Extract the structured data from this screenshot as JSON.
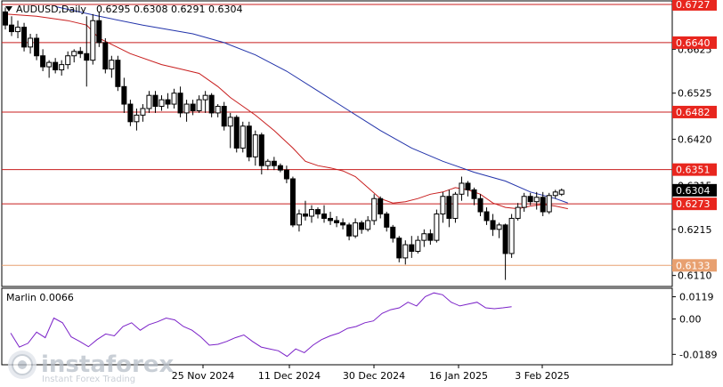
{
  "header": {
    "symbol_label": "AUDUSD,Daily",
    "ohlc_label": "0.6295 0.6308 0.6291 0.6304"
  },
  "indicator": {
    "label": "Marlin 0.0066",
    "ticks": [
      0.0119,
      0.0,
      -0.0189
    ]
  },
  "logo": {
    "brand": "instaforex",
    "tagline": "Instant Forex Trading"
  },
  "colors": {
    "bull": "#ffffff",
    "bear": "#000000",
    "ma_fast": "#c81e1e",
    "ma_slow": "#2233aa",
    "level_line": "#c81e1e",
    "level_label_bg": "#e8261e",
    "last_price_bg": "#000000",
    "support_line": "#e8a070",
    "support_label_bg": "#e8a070",
    "oscillator": "#7b22c8"
  },
  "chart_data": [
    {
      "type": "candlestick",
      "title": "AUDUSD,Daily",
      "x_tick_labels": [
        "25 Nov 2024",
        "11 Dec 2024",
        "30 Dec 2024",
        "16 Jan 2025",
        "3 Feb 2025"
      ],
      "y_tick_labels": [
        0.6625,
        0.6525,
        0.642,
        0.6315,
        0.6215,
        0.611
      ],
      "ylim": [
        0.6085,
        0.6735
      ],
      "levels": [
        {
          "value": 0.6727,
          "label": "0.6727"
        },
        {
          "value": 0.664,
          "label": "0.6640"
        },
        {
          "value": 0.6482,
          "label": "0.6482"
        },
        {
          "value": 0.6351,
          "label": "0.6351"
        },
        {
          "value": 0.6273,
          "label": "0.6273"
        }
      ],
      "support": {
        "value": 0.6133,
        "label": "0.6133"
      },
      "last_price": {
        "value": 0.6304,
        "label": "0.6304"
      },
      "candles": [
        [
          0.671,
          0.672,
          0.667,
          0.668
        ],
        [
          0.668,
          0.67,
          0.6655,
          0.6665
        ],
        [
          0.6665,
          0.669,
          0.665,
          0.6675
        ],
        [
          0.6675,
          0.6685,
          0.662,
          0.663
        ],
        [
          0.663,
          0.666,
          0.6615,
          0.665
        ],
        [
          0.665,
          0.666,
          0.66,
          0.661
        ],
        [
          0.661,
          0.6625,
          0.6575,
          0.6585
        ],
        [
          0.6585,
          0.66,
          0.656,
          0.6595
        ],
        [
          0.6595,
          0.6605,
          0.657,
          0.6578
        ],
        [
          0.6578,
          0.66,
          0.6565,
          0.659
        ],
        [
          0.659,
          0.662,
          0.658,
          0.661
        ],
        [
          0.661,
          0.6625,
          0.6595,
          0.662
        ],
        [
          0.662,
          0.663,
          0.6605,
          0.6615
        ],
        [
          0.6615,
          0.67,
          0.654,
          0.66
        ],
        [
          0.66,
          0.6705,
          0.659,
          0.669
        ],
        [
          0.669,
          0.671,
          0.663,
          0.664
        ],
        [
          0.664,
          0.665,
          0.657,
          0.658
        ],
        [
          0.658,
          0.661,
          0.656,
          0.66
        ],
        [
          0.66,
          0.661,
          0.653,
          0.654
        ],
        [
          0.654,
          0.656,
          0.648,
          0.65
        ],
        [
          0.65,
          0.651,
          0.645,
          0.646
        ],
        [
          0.646,
          0.649,
          0.644,
          0.6475
        ],
        [
          0.6475,
          0.65,
          0.646,
          0.649
        ],
        [
          0.649,
          0.653,
          0.648,
          0.652
        ],
        [
          0.652,
          0.653,
          0.648,
          0.6495
        ],
        [
          0.6495,
          0.652,
          0.6485,
          0.651
        ],
        [
          0.651,
          0.6525,
          0.649,
          0.65
        ],
        [
          0.65,
          0.6535,
          0.649,
          0.6525
        ],
        [
          0.6525,
          0.654,
          0.647,
          0.648
        ],
        [
          0.648,
          0.651,
          0.646,
          0.65
        ],
        [
          0.65,
          0.651,
          0.6475,
          0.6485
        ],
        [
          0.6485,
          0.652,
          0.648,
          0.651
        ],
        [
          0.651,
          0.653,
          0.648,
          0.652
        ],
        [
          0.652,
          0.6525,
          0.647,
          0.648
        ],
        [
          0.648,
          0.65,
          0.647,
          0.6495
        ],
        [
          0.6495,
          0.6505,
          0.644,
          0.645
        ],
        [
          0.645,
          0.648,
          0.64,
          0.647
        ],
        [
          0.647,
          0.6475,
          0.639,
          0.64
        ],
        [
          0.64,
          0.646,
          0.639,
          0.645
        ],
        [
          0.645,
          0.646,
          0.637,
          0.638
        ],
        [
          0.638,
          0.644,
          0.636,
          0.643
        ],
        [
          0.643,
          0.6435,
          0.634,
          0.636
        ],
        [
          0.636,
          0.6375,
          0.635,
          0.637
        ],
        [
          0.637,
          0.638,
          0.635,
          0.636
        ],
        [
          0.636,
          0.6365,
          0.6345,
          0.635
        ],
        [
          0.635,
          0.636,
          0.632,
          0.633
        ],
        [
          0.633,
          0.6335,
          0.622,
          0.6225
        ],
        [
          0.6225,
          0.626,
          0.621,
          0.625
        ],
        [
          0.625,
          0.628,
          0.6235,
          0.6245
        ],
        [
          0.6245,
          0.627,
          0.623,
          0.626
        ],
        [
          0.626,
          0.6265,
          0.624,
          0.625
        ],
        [
          0.625,
          0.627,
          0.623,
          0.624
        ],
        [
          0.624,
          0.6255,
          0.6225,
          0.6235
        ],
        [
          0.6235,
          0.6245,
          0.622,
          0.623
        ],
        [
          0.623,
          0.624,
          0.6215,
          0.6225
        ],
        [
          0.6225,
          0.623,
          0.619,
          0.62
        ],
        [
          0.62,
          0.624,
          0.6195,
          0.623
        ],
        [
          0.623,
          0.6235,
          0.6205,
          0.6215
        ],
        [
          0.6215,
          0.6245,
          0.621,
          0.6235
        ],
        [
          0.6235,
          0.6295,
          0.6225,
          0.6285
        ],
        [
          0.6285,
          0.629,
          0.624,
          0.625
        ],
        [
          0.625,
          0.6255,
          0.621,
          0.622
        ],
        [
          0.622,
          0.6225,
          0.6185,
          0.6195
        ],
        [
          0.6195,
          0.62,
          0.614,
          0.615
        ],
        [
          0.615,
          0.619,
          0.6135,
          0.618
        ],
        [
          0.618,
          0.62,
          0.615,
          0.6165
        ],
        [
          0.6165,
          0.62,
          0.616,
          0.619
        ],
        [
          0.619,
          0.6215,
          0.6175,
          0.6205
        ],
        [
          0.6205,
          0.6215,
          0.618,
          0.619
        ],
        [
          0.619,
          0.626,
          0.6185,
          0.625
        ],
        [
          0.625,
          0.63,
          0.623,
          0.629
        ],
        [
          0.629,
          0.6305,
          0.622,
          0.624
        ],
        [
          0.624,
          0.63,
          0.623,
          0.6295
        ],
        [
          0.6295,
          0.6335,
          0.628,
          0.632
        ],
        [
          0.632,
          0.6325,
          0.629,
          0.6305
        ],
        [
          0.6305,
          0.631,
          0.627,
          0.6285
        ],
        [
          0.6285,
          0.6295,
          0.6245,
          0.6255
        ],
        [
          0.6255,
          0.6265,
          0.6225,
          0.6235
        ],
        [
          0.6235,
          0.625,
          0.62,
          0.6215
        ],
        [
          0.6215,
          0.623,
          0.6195,
          0.6225
        ],
        [
          0.6225,
          0.6228,
          0.61,
          0.616
        ],
        [
          0.616,
          0.625,
          0.615,
          0.624
        ],
        [
          0.624,
          0.6275,
          0.6235,
          0.6265
        ],
        [
          0.6265,
          0.6298,
          0.6255,
          0.629
        ],
        [
          0.629,
          0.6298,
          0.627,
          0.6278
        ],
        [
          0.6278,
          0.63,
          0.626,
          0.6288
        ],
        [
          0.6288,
          0.63,
          0.6245,
          0.6255
        ],
        [
          0.6255,
          0.6298,
          0.625,
          0.6292
        ],
        [
          0.6292,
          0.6305,
          0.6285,
          0.63
        ],
        [
          0.6295,
          0.6308,
          0.6291,
          0.6304
        ]
      ],
      "ma_fast": [
        [
          0,
          0.6705
        ],
        [
          5,
          0.67
        ],
        [
          10,
          0.669
        ],
        [
          13,
          0.668
        ],
        [
          15,
          0.665
        ],
        [
          20,
          0.6615
        ],
        [
          25,
          0.659
        ],
        [
          28,
          0.658
        ],
        [
          31,
          0.657
        ],
        [
          34,
          0.654
        ],
        [
          36,
          0.6515
        ],
        [
          38,
          0.6495
        ],
        [
          40,
          0.6475
        ],
        [
          43,
          0.644
        ],
        [
          46,
          0.64
        ],
        [
          48,
          0.637
        ],
        [
          50,
          0.636
        ],
        [
          52,
          0.6355
        ],
        [
          54,
          0.6348
        ],
        [
          56,
          0.6335
        ],
        [
          58,
          0.631
        ],
        [
          60,
          0.6285
        ],
        [
          62,
          0.6275
        ],
        [
          64,
          0.6278
        ],
        [
          66,
          0.6285
        ],
        [
          68,
          0.6295
        ],
        [
          70,
          0.63
        ],
        [
          72,
          0.631
        ],
        [
          74,
          0.6305
        ],
        [
          76,
          0.6295
        ],
        [
          78,
          0.6275
        ],
        [
          80,
          0.6265
        ],
        [
          82,
          0.6262
        ],
        [
          84,
          0.6268
        ],
        [
          86,
          0.6272
        ],
        [
          88,
          0.6268
        ],
        [
          90,
          0.6262
        ]
      ],
      "ma_slow": [
        [
          8,
          0.6722
        ],
        [
          15,
          0.67
        ],
        [
          22,
          0.668
        ],
        [
          30,
          0.666
        ],
        [
          35,
          0.664
        ],
        [
          40,
          0.6612
        ],
        [
          45,
          0.6575
        ],
        [
          50,
          0.653
        ],
        [
          55,
          0.6485
        ],
        [
          60,
          0.644
        ],
        [
          65,
          0.64
        ],
        [
          70,
          0.637
        ],
        [
          75,
          0.6345
        ],
        [
          80,
          0.6325
        ],
        [
          84,
          0.63
        ],
        [
          88,
          0.6285
        ],
        [
          90,
          0.6275
        ]
      ]
    },
    {
      "type": "line",
      "title": "Marlin 0.0066",
      "ylim": [
        -0.0235,
        0.0155
      ],
      "y_tick_labels": [
        0.0119,
        0.0,
        -0.0189
      ],
      "points": [
        [
          14,
          -0.0075
        ],
        [
          16,
          -0.015
        ],
        [
          18,
          -0.013
        ],
        [
          20,
          -0.007
        ],
        [
          22,
          -0.01
        ],
        [
          24,
          0.0005
        ],
        [
          26,
          -0.002
        ],
        [
          28,
          -0.0095
        ],
        [
          30,
          -0.012
        ],
        [
          32,
          -0.0148
        ],
        [
          34,
          -0.011
        ],
        [
          36,
          -0.008
        ],
        [
          38,
          -0.009
        ],
        [
          40,
          -0.004
        ],
        [
          42,
          -0.002
        ],
        [
          44,
          -0.006
        ],
        [
          46,
          -0.003
        ],
        [
          48,
          -0.0015
        ],
        [
          50,
          0.0005
        ],
        [
          52,
          -0.0005
        ],
        [
          54,
          -0.004
        ],
        [
          56,
          -0.006
        ],
        [
          58,
          -0.0095
        ],
        [
          60,
          -0.014
        ],
        [
          62,
          -0.0135
        ],
        [
          64,
          -0.012
        ],
        [
          66,
          -0.01
        ],
        [
          68,
          -0.0085
        ],
        [
          70,
          -0.012
        ],
        [
          72,
          -0.015
        ],
        [
          74,
          -0.016
        ],
        [
          76,
          -0.017
        ],
        [
          78,
          -0.02
        ],
        [
          80,
          -0.016
        ],
        [
          82,
          -0.018
        ],
        [
          84,
          -0.014
        ],
        [
          86,
          -0.011
        ],
        [
          88,
          -0.009
        ],
        [
          90,
          -0.0075
        ],
        [
          92,
          -0.005
        ],
        [
          94,
          -0.004
        ],
        [
          96,
          -0.002
        ],
        [
          98,
          -0.001
        ],
        [
          100,
          0.003
        ],
        [
          102,
          0.005
        ],
        [
          104,
          0.006
        ],
        [
          106,
          0.009
        ],
        [
          108,
          0.007
        ],
        [
          110,
          0.012
        ],
        [
          112,
          0.014
        ],
        [
          114,
          0.013
        ],
        [
          116,
          0.009
        ],
        [
          118,
          0.007
        ],
        [
          120,
          0.008
        ],
        [
          122,
          0.009
        ],
        [
          124,
          0.006
        ],
        [
          126,
          0.0055
        ],
        [
          128,
          0.006
        ],
        [
          130,
          0.0066
        ]
      ]
    }
  ]
}
